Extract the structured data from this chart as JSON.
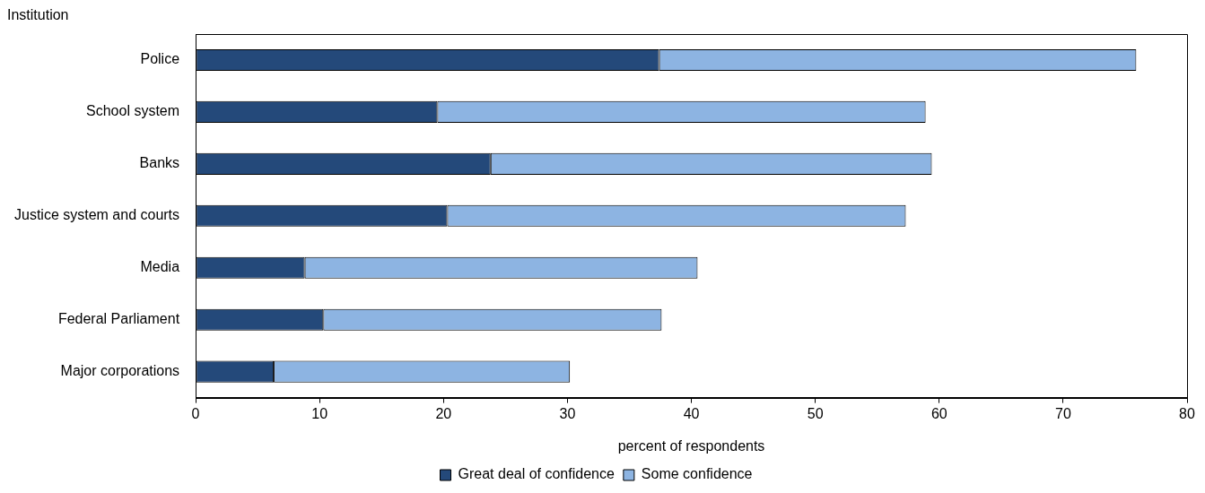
{
  "chart_data": {
    "type": "bar",
    "orientation": "horizontal",
    "stacked": true,
    "ylabel": "Institution",
    "xlabel": "percent of respondents",
    "categories": [
      "Police",
      "School system",
      "Banks",
      "Justice system and courts",
      "Media",
      "Federal Parliament",
      "Major corporations"
    ],
    "series": [
      {
        "name": "Great deal of confidence",
        "color": "#24497a",
        "values": [
          37.4,
          19.5,
          23.8,
          20.3,
          8.8,
          10.3,
          6.3
        ]
      },
      {
        "name": "Some confidence",
        "color": "#8db4e2",
        "values": [
          38.5,
          39.4,
          35.6,
          37.0,
          31.7,
          27.3,
          23.9
        ]
      }
    ],
    "xlim": [
      0,
      80
    ],
    "xticks": [
      0,
      10,
      20,
      30,
      40,
      50,
      60,
      70,
      80
    ],
    "grid": false,
    "legend": "bottom"
  }
}
